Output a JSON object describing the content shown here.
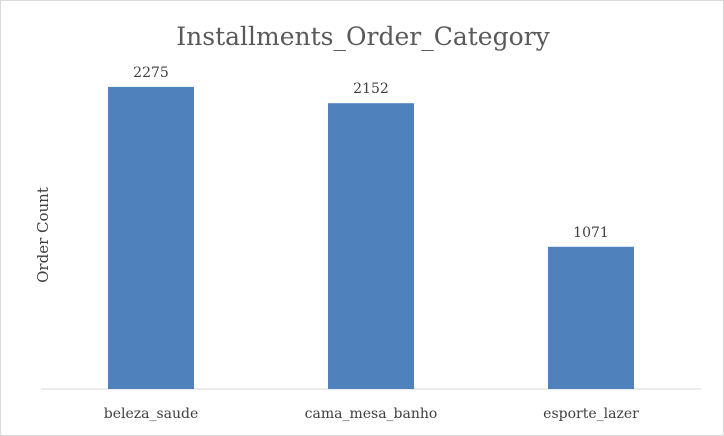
{
  "chart_data": {
    "type": "bar",
    "title": "Installments_Order_Category",
    "xlabel": "",
    "ylabel": "Order Count",
    "categories": [
      "beleza_saude",
      "cama_mesa_banho",
      "esporte_lazer"
    ],
    "values": [
      2275,
      2152,
      1071
    ],
    "ylim": [
      0,
      2500
    ],
    "grid": false,
    "legend": "none",
    "data_labels": true,
    "bar_color": "#4f81bd",
    "axis_color": "#d9d9d9"
  }
}
